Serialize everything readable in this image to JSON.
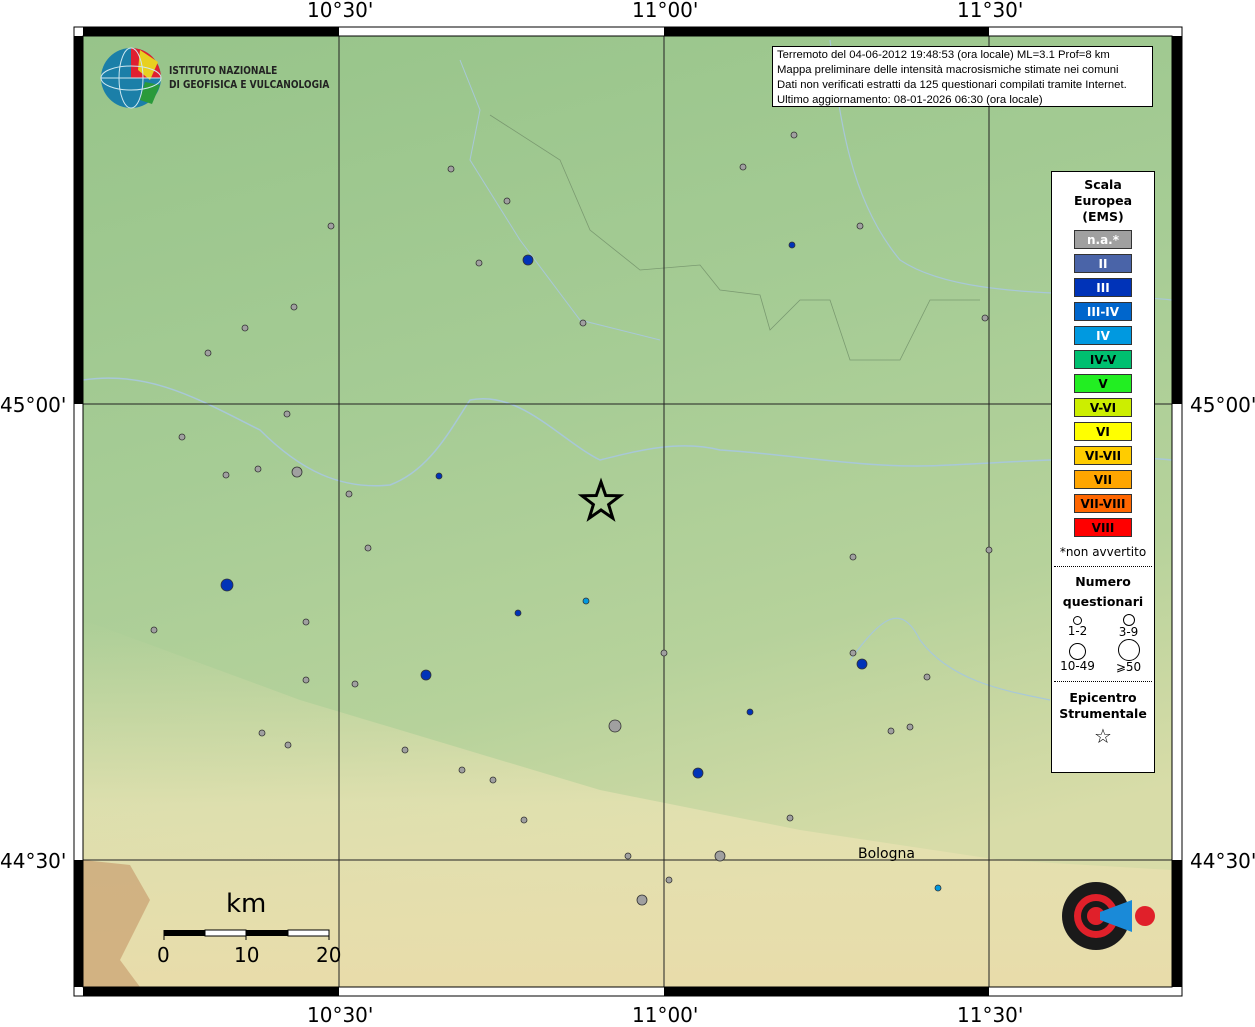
{
  "info": {
    "line1": "Terremoto del 04-06-2012 19:48:53 (ora locale) ML=3.1 Prof=8 km",
    "line2": "Mappa preliminare delle intensità macrosismiche stimate nei comuni",
    "line3": "Dati non verificati estratti da 125 questionari compilati tramite Internet.",
    "line4": "Ultimo aggiornamento: 08-01-2026 06:30 (ora locale)"
  },
  "logo": {
    "line1": "ISTITUTO NAZIONALE",
    "line2": "DI GEOFISICA E VULCANOLOGIA"
  },
  "axes": {
    "lon": [
      "10°30'",
      "11°00'",
      "11°30'"
    ],
    "lat": [
      "45°00'",
      "44°30'"
    ]
  },
  "place": "Bologna",
  "scale": {
    "unit": "km",
    "ticks": [
      "0",
      "10",
      "20"
    ]
  },
  "legend": {
    "title1": "Scala",
    "title2": "Europea",
    "title3": "(EMS)",
    "classes": [
      {
        "label": "n.a.*",
        "color": "#a0a0a0",
        "text": "#fff"
      },
      {
        "label": "II",
        "color": "#4a64a8",
        "text": "#fff"
      },
      {
        "label": "III",
        "color": "#0033b8",
        "text": "#fff"
      },
      {
        "label": "III-IV",
        "color": "#0066cc",
        "text": "#fff"
      },
      {
        "label": "IV",
        "color": "#0099e0",
        "text": "#fff"
      },
      {
        "label": "IV-V",
        "color": "#00c070",
        "text": "#000"
      },
      {
        "label": "V",
        "color": "#22ee22",
        "text": "#000"
      },
      {
        "label": "V-VI",
        "color": "#ccee00",
        "text": "#000"
      },
      {
        "label": "VI",
        "color": "#ffff00",
        "text": "#000"
      },
      {
        "label": "VI-VII",
        "color": "#ffcc00",
        "text": "#000"
      },
      {
        "label": "VII",
        "color": "#ffa500",
        "text": "#000"
      },
      {
        "label": "VII-VIII",
        "color": "#ff6600",
        "text": "#000"
      },
      {
        "label": "VIII",
        "color": "#ff0000",
        "text": "#000"
      }
    ],
    "note": "*non avvertito",
    "count_title1": "Numero",
    "count_title2": "questionari",
    "counts": [
      "1-2",
      "3-9",
      "10-49",
      "⩾50"
    ],
    "epi1": "Epicentro",
    "epi2": "Strumentale"
  },
  "hsit_logo": "www.haisentitoilterremoto.it"
}
